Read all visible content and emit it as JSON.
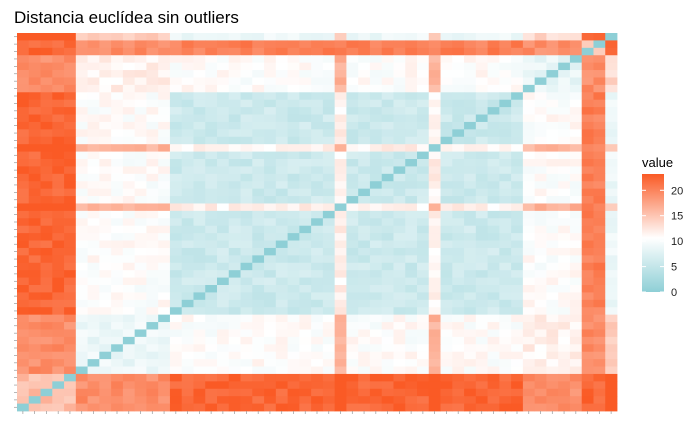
{
  "chart_data": {
    "type": "heatmap",
    "title": "Distancia euclídea sin outliers",
    "xlabel": "",
    "ylabel": "",
    "n": 51,
    "value_range": [
      0,
      24
    ],
    "legend": {
      "title": "value",
      "ticks": [
        0,
        5,
        10,
        15,
        20
      ],
      "placement": "right"
    },
    "color_scale": {
      "low": "#8ecfd6",
      "mid": "#ffffff",
      "high": "#fa5a25",
      "midpoint": 11
    },
    "grid": false
  }
}
